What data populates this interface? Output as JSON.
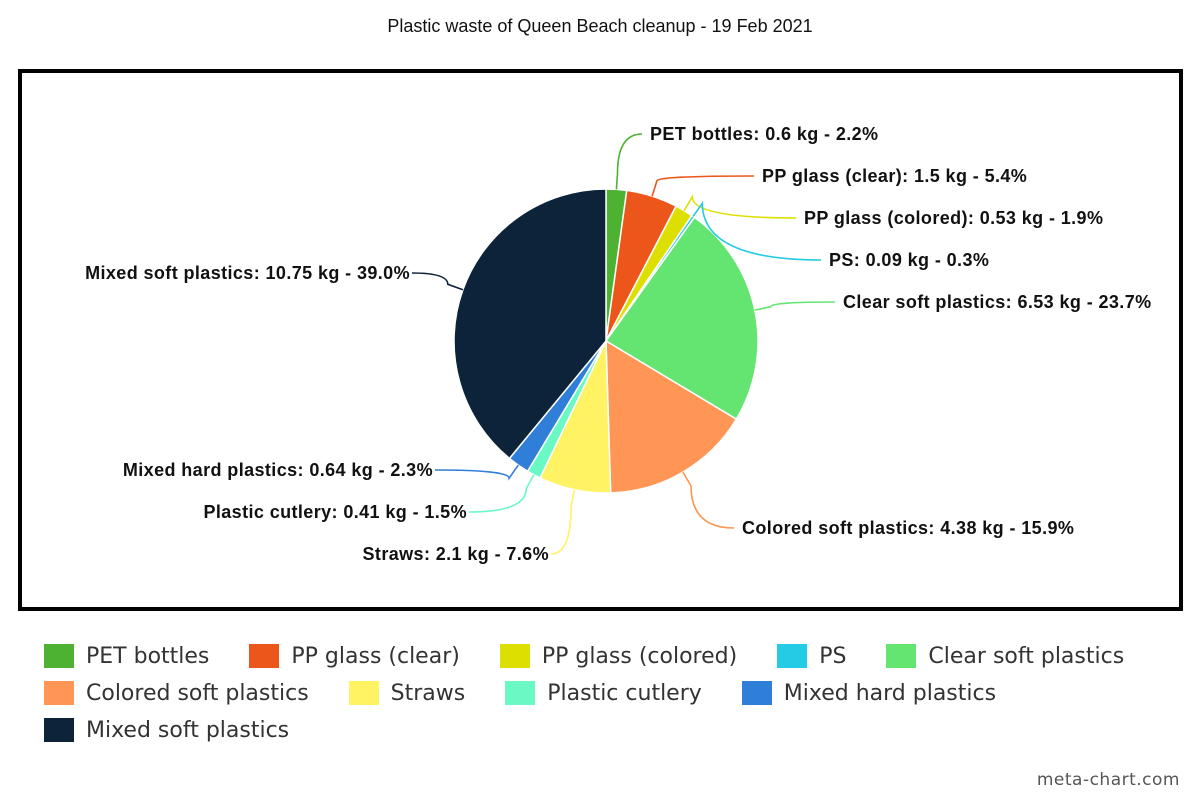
{
  "chart_data": {
    "type": "pie",
    "title": "Plastic waste of Queen Beach cleanup - 19 Feb 2021",
    "legend_position": "bottom",
    "slices": [
      {
        "name": "PET bottles",
        "value": 0.6,
        "percent": 2.2,
        "color": "#4db131",
        "label": "PET bottles: 0.6 kg - 2.2%"
      },
      {
        "name": "PP glass (clear)",
        "value": 1.5,
        "percent": 5.4,
        "color": "#ec561b",
        "label": "PP glass (clear): 1.5 kg - 5.4%"
      },
      {
        "name": "PP glass (colored)",
        "value": 0.53,
        "percent": 1.9,
        "color": "#dddf00",
        "label": "PP glass (colored): 0.53 kg - 1.9%"
      },
      {
        "name": "PS",
        "value": 0.09,
        "percent": 0.3,
        "color": "#24cbe5",
        "label": "PS: 0.09 kg - 0.3%"
      },
      {
        "name": "Clear soft plastics",
        "value": 6.53,
        "percent": 23.7,
        "color": "#64e572",
        "label": "Clear soft plastics: 6.53 kg - 23.7%"
      },
      {
        "name": "Colored soft plastics",
        "value": 4.38,
        "percent": 15.9,
        "color": "#ff9655",
        "label": "Colored soft plastics: 4.38 kg - 15.9%"
      },
      {
        "name": "Straws",
        "value": 2.1,
        "percent": 7.6,
        "color": "#fff263",
        "label": "Straws: 2.1 kg - 7.6%"
      },
      {
        "name": "Plastic cutlery",
        "value": 0.41,
        "percent": 1.5,
        "color": "#6af9c4",
        "label": "Plastic cutlery: 0.41 kg - 1.5%"
      },
      {
        "name": "Mixed hard plastics",
        "value": 0.64,
        "percent": 2.3,
        "color": "#2f7ed8",
        "label": "Mixed hard plastics: 0.64 kg - 2.3%"
      },
      {
        "name": "Mixed soft plastics",
        "value": 10.75,
        "percent": 39.0,
        "color": "#0d233a",
        "label": "Mixed soft plastics: 10.75 kg - 39.0%"
      }
    ]
  },
  "watermark": "meta-chart.com"
}
